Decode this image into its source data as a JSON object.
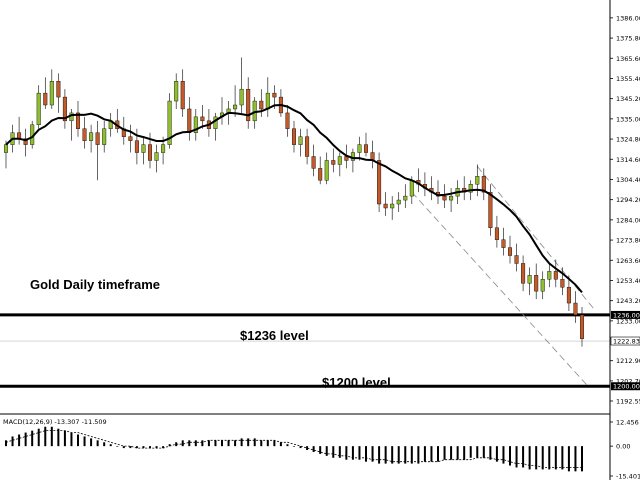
{
  "chart_data": {
    "type": "candlestick",
    "instrument": "Gold",
    "annotations": {
      "title": "Gold Daily timeframe",
      "level_1236": "$1236 level",
      "level_1200": "$1200 level"
    },
    "price_axis": {
      "ylim": [
        1188,
        1393
      ],
      "ticks": [
        "1386.00",
        "1375.80",
        "1365.60",
        "1355.40",
        "1345.20",
        "1335.00",
        "1324.80",
        "1314.60",
        "1304.40",
        "1294.20",
        "1284.00",
        "1273.80",
        "1263.60",
        "1253.40",
        "1243.20",
        "1233.00",
        "1212.90",
        "1202.70",
        "1192.55"
      ],
      "tick_values": [
        1386.0,
        1375.8,
        1365.6,
        1355.4,
        1345.2,
        1335.0,
        1324.8,
        1314.6,
        1304.4,
        1294.2,
        1284.0,
        1273.8,
        1263.6,
        1253.4,
        1243.2,
        1233.0,
        1212.9,
        1202.7,
        1192.55
      ]
    },
    "levels": [
      {
        "label": "1236.00",
        "value": 1236.0,
        "color": "#000000"
      },
      {
        "label": "1200.00",
        "value": 1200.0,
        "color": "#000000"
      }
    ],
    "current_price": {
      "label": "1222.83",
      "value": 1222.83
    },
    "bullish_color": "#8fbf2e",
    "bearish_color": "#c25a2a",
    "ma_color": "#000000",
    "candles": [
      [
        1318,
        1324,
        1310,
        1322
      ],
      [
        1322,
        1332,
        1318,
        1328
      ],
      [
        1328,
        1336,
        1322,
        1325
      ],
      [
        1325,
        1330,
        1316,
        1322
      ],
      [
        1322,
        1334,
        1320,
        1332
      ],
      [
        1332,
        1352,
        1330,
        1348
      ],
      [
        1348,
        1356,
        1340,
        1342
      ],
      [
        1342,
        1360,
        1340,
        1354
      ],
      [
        1354,
        1358,
        1338,
        1346
      ],
      [
        1346,
        1350,
        1330,
        1334
      ],
      [
        1334,
        1340,
        1324,
        1338
      ],
      [
        1338,
        1344,
        1326,
        1330
      ],
      [
        1330,
        1336,
        1320,
        1324
      ],
      [
        1324,
        1332,
        1318,
        1328
      ],
      [
        1328,
        1334,
        1304,
        1322
      ],
      [
        1322,
        1334,
        1318,
        1330
      ],
      [
        1330,
        1338,
        1326,
        1334
      ],
      [
        1334,
        1340,
        1328,
        1330
      ],
      [
        1330,
        1336,
        1322,
        1326
      ],
      [
        1326,
        1332,
        1318,
        1324
      ],
      [
        1324,
        1330,
        1312,
        1318
      ],
      [
        1318,
        1326,
        1312,
        1322
      ],
      [
        1322,
        1328,
        1310,
        1314
      ],
      [
        1314,
        1322,
        1308,
        1318
      ],
      [
        1318,
        1326,
        1312,
        1322
      ],
      [
        1322,
        1348,
        1320,
        1344
      ],
      [
        1344,
        1358,
        1340,
        1354
      ],
      [
        1354,
        1360,
        1336,
        1340
      ],
      [
        1340,
        1346,
        1324,
        1328
      ],
      [
        1328,
        1340,
        1324,
        1336
      ],
      [
        1336,
        1342,
        1330,
        1334
      ],
      [
        1334,
        1340,
        1326,
        1330
      ],
      [
        1330,
        1338,
        1324,
        1336
      ],
      [
        1336,
        1346,
        1332,
        1338
      ],
      [
        1338,
        1344,
        1332,
        1340
      ],
      [
        1340,
        1352,
        1336,
        1342
      ],
      [
        1342,
        1366,
        1338,
        1350
      ],
      [
        1350,
        1356,
        1330,
        1334
      ],
      [
        1334,
        1346,
        1330,
        1344
      ],
      [
        1344,
        1350,
        1336,
        1340
      ],
      [
        1340,
        1356,
        1336,
        1348
      ],
      [
        1348,
        1352,
        1340,
        1346
      ],
      [
        1346,
        1350,
        1336,
        1338
      ],
      [
        1338,
        1342,
        1326,
        1330
      ],
      [
        1330,
        1334,
        1318,
        1322
      ],
      [
        1322,
        1330,
        1316,
        1326
      ],
      [
        1326,
        1330,
        1312,
        1316
      ],
      [
        1316,
        1322,
        1306,
        1310
      ],
      [
        1310,
        1316,
        1302,
        1304
      ],
      [
        1304,
        1318,
        1302,
        1314
      ],
      [
        1314,
        1320,
        1308,
        1312
      ],
      [
        1312,
        1318,
        1306,
        1316
      ],
      [
        1316,
        1322,
        1310,
        1314
      ],
      [
        1314,
        1320,
        1308,
        1318
      ],
      [
        1318,
        1326,
        1314,
        1322
      ],
      [
        1322,
        1328,
        1316,
        1318
      ],
      [
        1318,
        1324,
        1310,
        1314
      ],
      [
        1314,
        1318,
        1288,
        1292
      ],
      [
        1292,
        1298,
        1286,
        1290
      ],
      [
        1290,
        1296,
        1284,
        1292
      ],
      [
        1292,
        1298,
        1288,
        1294
      ],
      [
        1294,
        1302,
        1290,
        1296
      ],
      [
        1296,
        1306,
        1292,
        1304
      ],
      [
        1304,
        1310,
        1298,
        1302
      ],
      [
        1302,
        1308,
        1296,
        1300
      ],
      [
        1300,
        1306,
        1294,
        1298
      ],
      [
        1298,
        1304,
        1292,
        1296
      ],
      [
        1296,
        1302,
        1290,
        1294
      ],
      [
        1294,
        1300,
        1288,
        1296
      ],
      [
        1296,
        1304,
        1292,
        1300
      ],
      [
        1300,
        1306,
        1294,
        1298
      ],
      [
        1298,
        1304,
        1294,
        1302
      ],
      [
        1302,
        1312,
        1296,
        1306
      ],
      [
        1306,
        1310,
        1294,
        1298
      ],
      [
        1298,
        1302,
        1276,
        1280
      ],
      [
        1280,
        1286,
        1270,
        1274
      ],
      [
        1274,
        1280,
        1266,
        1270
      ],
      [
        1270,
        1276,
        1262,
        1266
      ],
      [
        1266,
        1272,
        1258,
        1262
      ],
      [
        1262,
        1266,
        1248,
        1252
      ],
      [
        1252,
        1260,
        1246,
        1256
      ],
      [
        1256,
        1262,
        1244,
        1248
      ],
      [
        1248,
        1258,
        1244,
        1254
      ],
      [
        1254,
        1262,
        1250,
        1258
      ],
      [
        1258,
        1264,
        1250,
        1254
      ],
      [
        1254,
        1260,
        1246,
        1250
      ],
      [
        1250,
        1256,
        1238,
        1242
      ],
      [
        1242,
        1248,
        1232,
        1236
      ],
      [
        1236,
        1240,
        1220,
        1224
      ]
    ],
    "macd": {
      "label": "MACD(12,26,9) -13.307 -11.509",
      "ylim": [
        -15.401,
        12.456
      ],
      "ticks": [
        "12.456",
        "0.00",
        "-15.401"
      ],
      "tick_values": [
        12.456,
        0.0,
        -15.401
      ],
      "histogram": [
        3,
        5,
        6,
        7,
        8,
        9,
        10,
        10,
        9,
        8,
        7,
        6,
        5,
        4,
        3,
        2,
        1,
        0,
        -1,
        -1,
        -1,
        -1,
        -1,
        -1,
        -1,
        1,
        2,
        3,
        3,
        3,
        3,
        3,
        3,
        3,
        3,
        3,
        4,
        4,
        4,
        3,
        3,
        3,
        2,
        1,
        0,
        -1,
        -2,
        -3,
        -4,
        -5,
        -6,
        -6,
        -7,
        -7,
        -7,
        -8,
        -8,
        -9,
        -9,
        -9,
        -9,
        -9,
        -9,
        -9,
        -8,
        -8,
        -8,
        -7,
        -7,
        -7,
        -7,
        -6,
        -6,
        -6,
        -7,
        -8,
        -9,
        -10,
        -11,
        -11,
        -12,
        -12,
        -12,
        -12,
        -12,
        -12,
        -13,
        -13,
        -13
      ],
      "signal": [
        2,
        3,
        4,
        5,
        6,
        7,
        8,
        8,
        8,
        8,
        7,
        7,
        6,
        5,
        4,
        3,
        2,
        1,
        0,
        0,
        -1,
        -1,
        -1,
        -1,
        -1,
        0,
        1,
        1,
        2,
        2,
        2,
        3,
        3,
        3,
        3,
        3,
        3,
        3,
        3,
        3,
        3,
        3,
        2,
        2,
        1,
        0,
        -1,
        -2,
        -3,
        -4,
        -4,
        -5,
        -5,
        -6,
        -6,
        -6,
        -7,
        -7,
        -7,
        -8,
        -8,
        -8,
        -8,
        -8,
        -8,
        -8,
        -8,
        -7,
        -7,
        -7,
        -7,
        -7,
        -6,
        -6,
        -6,
        -7,
        -7,
        -8,
        -9,
        -9,
        -10,
        -10,
        -11,
        -11,
        -11,
        -11,
        -11,
        -11,
        -11
      ]
    }
  }
}
